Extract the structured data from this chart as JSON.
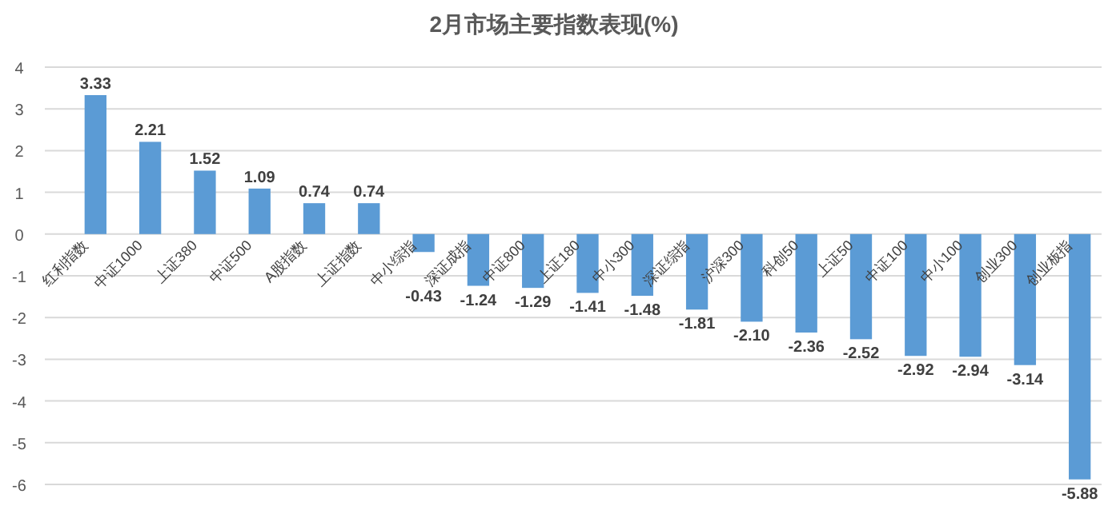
{
  "chart_data": {
    "type": "bar",
    "title": "2月市场主要指数表现(%)",
    "categories": [
      "红利指数",
      "中证1000",
      "上证380",
      "中证500",
      "A股指数",
      "上证指数",
      "中小综指",
      "深证成指",
      "中证800",
      "上证180",
      "中小300",
      "深证综指",
      "沪深300",
      "科创50",
      "上证50",
      "中证100",
      "中小100",
      "创业300",
      "创业板指"
    ],
    "values": [
      3.33,
      2.21,
      1.52,
      1.09,
      0.74,
      0.74,
      -0.43,
      -1.24,
      -1.29,
      -1.41,
      -1.48,
      -1.81,
      -2.1,
      -2.36,
      -2.52,
      -2.92,
      -2.94,
      -3.14,
      -5.88
    ],
    "value_labels": [
      "3.33",
      "2.21",
      "1.52",
      "1.09",
      "0.74",
      "0.74",
      "-0.43",
      "-1.24",
      "-1.29",
      "-1.41",
      "-1.48",
      "-1.81",
      "-2.10",
      "-2.36",
      "-2.52",
      "-2.92",
      "-2.94",
      "-3.14",
      "-5.88"
    ],
    "color": "#5b9bd5",
    "ylim": [
      -6,
      4
    ],
    "yticks": [
      -6,
      -5,
      -4,
      -3,
      -2,
      -1,
      0,
      1,
      2,
      3,
      4
    ],
    "grid": "y"
  }
}
